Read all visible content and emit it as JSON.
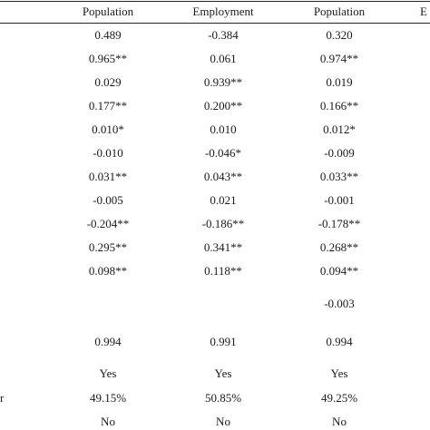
{
  "headers": [
    "Population",
    "Employment",
    "Population",
    "E"
  ],
  "rows": [
    {
      "label": "",
      "values": [
        "0.489",
        "-0.384",
        "0.320"
      ]
    },
    {
      "label": "",
      "values": [
        "0.965**",
        "0.061",
        "0.974**"
      ]
    },
    {
      "label": "",
      "values": [
        "0.029",
        "0.939**",
        "0.019"
      ]
    },
    {
      "label": "",
      "values": [
        "0.177**",
        "0.200**",
        "0.166**"
      ]
    },
    {
      "label": "",
      "values": [
        "0.010*",
        "0.010",
        "0.012*"
      ]
    },
    {
      "label": "",
      "values": [
        "-0.010",
        "-0.046*",
        "-0.009"
      ]
    },
    {
      "label": "",
      "values": [
        "0.031**",
        "0.043**",
        "0.033**"
      ]
    },
    {
      "label": "",
      "values": [
        "-0.005",
        "0.021",
        "-0.001"
      ]
    },
    {
      "label": "",
      "values": [
        "-0.204**",
        "-0.186**",
        "-0.178**"
      ]
    },
    {
      "label": "",
      "values": [
        "0.295**",
        "0.341**",
        "0.268**"
      ]
    },
    {
      "label": "",
      "values": [
        "0.098**",
        "0.118**",
        "0.094**"
      ]
    },
    {
      "label": "",
      "values": [
        "",
        "",
        "-0.003"
      ]
    },
    {
      "label": "",
      "values": [
        "0.994",
        "0.991",
        "0.994"
      ]
    },
    {
      "label": "",
      "values": [
        "Yes",
        "Yes",
        "Yes"
      ]
    },
    {
      "label": "r",
      "values": [
        "49.15%",
        "50.85%",
        "49.25%"
      ]
    },
    {
      "label": "",
      "values": [
        "No",
        "No",
        "No"
      ]
    }
  ]
}
